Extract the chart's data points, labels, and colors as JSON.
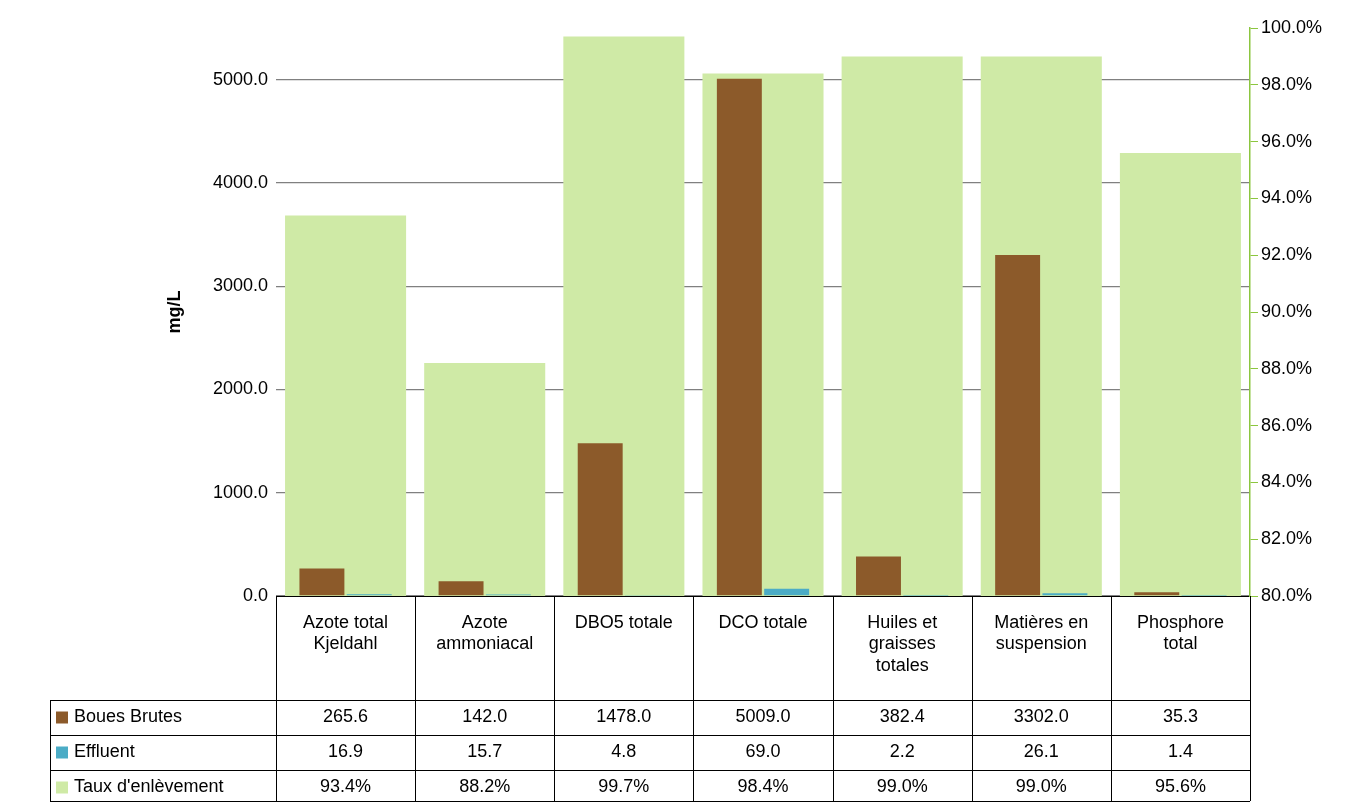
{
  "chart_data": {
    "type": "bar",
    "ylabel": "mg/L",
    "categories": [
      "Azote total Kjeldahl",
      "Azote ammoniacal",
      "DBO5 totale",
      "DCO totale",
      "Huiles et graisses totales",
      "Matières en suspension",
      "Phosphore total"
    ],
    "series": [
      {
        "name": "Boues Brutes",
        "color": "#8c5a2a",
        "values": [
          265.6,
          142.0,
          1478.0,
          5009.0,
          382.4,
          3302.0,
          35.3
        ],
        "value_labels": [
          "265.6",
          "142.0",
          "1478.0",
          "5009.0",
          "382.4",
          "3302.0",
          "35.3"
        ]
      },
      {
        "name": "Effluent",
        "color": "#4bacc6",
        "values": [
          16.9,
          15.7,
          4.8,
          69.0,
          2.2,
          26.1,
          1.4
        ],
        "value_labels": [
          "16.9",
          "15.7",
          "4.8",
          "69.0",
          "2.2",
          "26.1",
          "1.4"
        ]
      },
      {
        "name": "Taux d'enlèvement",
        "color": "#cfeaa6",
        "axis": "y2",
        "values": [
          93.4,
          88.2,
          99.7,
          98.4,
          99.0,
          99.0,
          95.6
        ],
        "value_labels": [
          "93.4%",
          "88.2%",
          "99.7%",
          "98.4%",
          "99.0%",
          "99.0%",
          "95.6%"
        ]
      }
    ],
    "ylim": [
      0,
      5500
    ],
    "yticks": [
      {
        "value": 0,
        "label": "0.0"
      },
      {
        "value": 1000,
        "label": "1000.0"
      },
      {
        "value": 2000,
        "label": "2000.0"
      },
      {
        "value": 3000,
        "label": "3000.0"
      },
      {
        "value": 4000,
        "label": "4000.0"
      },
      {
        "value": 5000,
        "label": "5000.0"
      }
    ],
    "y2lim": [
      80,
      100
    ],
    "y2ticks": [
      {
        "value": 80,
        "label": "80.0%"
      },
      {
        "value": 82,
        "label": "82.0%"
      },
      {
        "value": 84,
        "label": "84.0%"
      },
      {
        "value": 86,
        "label": "86.0%"
      },
      {
        "value": 88,
        "label": "88.0%"
      },
      {
        "value": 90,
        "label": "90.0%"
      },
      {
        "value": 92,
        "label": "92.0%"
      },
      {
        "value": 94,
        "label": "94.0%"
      },
      {
        "value": 96,
        "label": "96.0%"
      },
      {
        "value": 98,
        "label": "98.0%"
      },
      {
        "value": 100,
        "label": "100.0%"
      }
    ],
    "grid": "y",
    "legend": "bottom"
  }
}
